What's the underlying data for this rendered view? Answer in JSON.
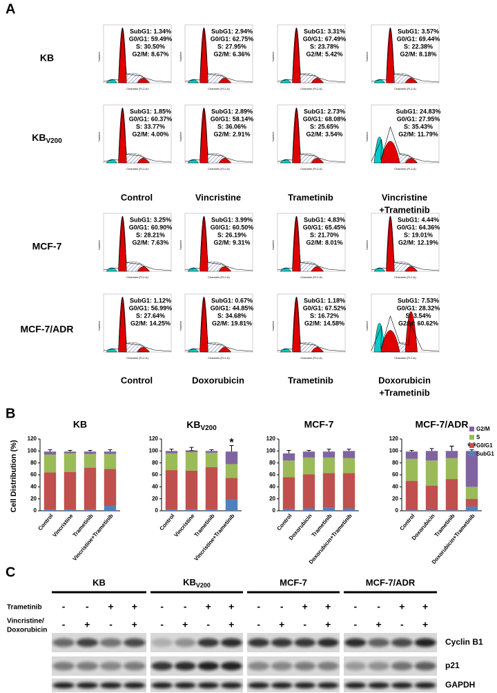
{
  "panel_a": {
    "label": "A",
    "plot_x_label": "Channels (FL2-A)",
    "plot_y_label": "Number",
    "rows": [
      {
        "label": "KB",
        "plots": [
          [
            "SubG1: 1.34%",
            "G0/G1: 59.49%",
            "S: 30.50%",
            "G2/M: 8.67%"
          ],
          [
            "SubG1: 2.94%",
            "G0/G1: 62.75%",
            "S: 27.95%",
            "G2/M: 6.36%"
          ],
          [
            "SubG1: 3.31%",
            "G0/G1: 67.49%",
            "S: 23.78%",
            "G2/M: 5.42%"
          ],
          [
            "SubG1: 3.57%",
            "G0/G1: 69.44%",
            "S: 22.38%",
            "G2/M: 8.18%"
          ]
        ]
      },
      {
        "label": {
          "main": "KB",
          "sub": "V200"
        },
        "plots": [
          [
            "SubG1: 1.85%",
            "G0/G1: 60.37%",
            "S: 33.77%",
            "G2/M: 4.00%"
          ],
          [
            "SubG1: 2.89%",
            "G0/G1: 58.14%",
            "S: 36.06%",
            "G2/M: 2.91%"
          ],
          [
            "SubG1: 2.73%",
            "G0/G1: 68.08%",
            "S: 25.65%",
            "G2/M: 3.54%"
          ],
          [
            "SubG1: 24.83%",
            "G0/G1: 27.95%",
            "S: 35.43%",
            "G2/M: 11.79%"
          ]
        ]
      },
      {
        "label": "MCF-7",
        "plots": [
          [
            "SubG1: 3.25%",
            "G0/G1: 60.90%",
            "S: 28.21%",
            "G2/M: 7.63%"
          ],
          [
            "SubG1: 3.99%",
            "G0/G1: 60.50%",
            "S: 26.19%",
            "G2/M: 9.31%"
          ],
          [
            "SubG1: 4.83%",
            "G0/G1: 65.45%",
            "S: 21.70%",
            "G2/M: 8.01%"
          ],
          [
            "SubG1: 4.44%",
            "G0/G1: 64.36%",
            "S: 19.01%",
            "G2/M: 12.19%"
          ]
        ]
      },
      {
        "label": "MCF-7/ADR",
        "plots": [
          [
            "SubG1: 1.12%",
            "G0/G1: 56.99%",
            "S: 27.64%",
            "G2/M: 14.25%"
          ],
          [
            "SubG1: 0.67%",
            "G0/G1: 44.85%",
            "S: 34.68%",
            "G2/M: 19.81%"
          ],
          [
            "SubG1: 1.18%",
            "G0/G1: 67.52%",
            "S: 16.72%",
            "G2/M: 14.58%"
          ],
          [
            "SubG1: 7.53%",
            "G0/G1: 28.32%",
            "S: 3.54%",
            "G2/M: 60.62%"
          ]
        ]
      }
    ],
    "column_labels": [
      [
        [
          "Control"
        ],
        [
          "Vincristine"
        ],
        [
          "Trametinib"
        ],
        [
          "Vincristine",
          "+Trametinib"
        ]
      ],
      [
        [
          "Control"
        ],
        [
          "Doxorubicin"
        ],
        [
          "Trametinib"
        ],
        [
          "Doxorubicin",
          "+Trametinib"
        ]
      ]
    ]
  },
  "panel_b": {
    "label": "B",
    "ylabel": "Cell Distribution (%)",
    "legend": "top-right"
  },
  "chart_data": [
    {
      "type": "bar",
      "stacked": true,
      "title": "KB",
      "categories": [
        "Control",
        "Vincristine",
        "Trametinib",
        "Vincristine+Trametinib"
      ],
      "ylim": [
        0,
        120
      ],
      "yticks": [
        0,
        20,
        40,
        60,
        80,
        100,
        120
      ],
      "series": [
        {
          "name": "SubG1",
          "color": "#4f81bd",
          "values": [
            2,
            2,
            2,
            8
          ],
          "errors": [
            1,
            1,
            1,
            4
          ]
        },
        {
          "name": "G0/G1",
          "color": "#c0504d",
          "values": [
            62,
            63,
            70,
            62
          ],
          "errors": [
            4,
            1,
            3,
            5
          ]
        },
        {
          "name": "S",
          "color": "#9bbb59",
          "values": [
            30,
            31,
            23,
            25
          ],
          "errors": [
            3,
            2,
            2,
            2
          ]
        },
        {
          "name": "G2/M",
          "color": "#8064a2",
          "values": [
            5,
            3,
            4,
            4
          ],
          "errors": [
            3,
            2,
            2,
            3
          ]
        }
      ]
    },
    {
      "type": "bar",
      "stacked": true,
      "title": "KB",
      "title_sub": "V200",
      "categories": [
        "Control",
        "Vincristine",
        "Trametinib",
        "Vincristine+Trametinib"
      ],
      "ylim": [
        0,
        120
      ],
      "yticks": [
        0,
        20,
        40,
        60,
        80,
        100,
        120
      ],
      "annotations": [
        {
          "category": "Vincristine+Trametinib",
          "text": "*"
        }
      ],
      "series": [
        {
          "name": "SubG1",
          "color": "#4f81bd",
          "values": [
            2,
            2,
            2,
            19
          ],
          "errors": [
            1,
            1,
            1,
            7
          ]
        },
        {
          "name": "G0/G1",
          "color": "#c0504d",
          "values": [
            66,
            65,
            71,
            36
          ],
          "errors": [
            10,
            12,
            4,
            12
          ]
        },
        {
          "name": "S",
          "color": "#9bbb59",
          "values": [
            28,
            31,
            24,
            23
          ],
          "errors": [
            3,
            3,
            2,
            10
          ]
        },
        {
          "name": "G2/M",
          "color": "#8064a2",
          "values": [
            4,
            3,
            3,
            21
          ],
          "errors": [
            3,
            5,
            2,
            10
          ]
        }
      ]
    },
    {
      "type": "bar",
      "stacked": true,
      "title": "MCF-7",
      "categories": [
        "Control",
        "Doxorubicin",
        "Trametinib",
        "Doxorubicin+Trametinib"
      ],
      "ylim": [
        0,
        120
      ],
      "yticks": [
        0,
        20,
        40,
        60,
        80,
        100,
        120
      ],
      "series": [
        {
          "name": "SubG1",
          "color": "#4f81bd",
          "values": [
            3,
            4,
            5,
            4
          ],
          "errors": [
            1,
            1,
            1,
            1
          ]
        },
        {
          "name": "G0/G1",
          "color": "#c0504d",
          "values": [
            53,
            57,
            58,
            59
          ],
          "errors": [
            10,
            3,
            10,
            7
          ]
        },
        {
          "name": "S",
          "color": "#9bbb59",
          "values": [
            28,
            28,
            26,
            25
          ],
          "errors": [
            4,
            3,
            5,
            4
          ]
        },
        {
          "name": "G2/M",
          "color": "#8064a2",
          "values": [
            12,
            10,
            10,
            12
          ],
          "errors": [
            5,
            2,
            4,
            3
          ]
        }
      ]
    },
    {
      "type": "bar",
      "stacked": true,
      "title": "MCF-7/ADR",
      "categories": [
        "Control",
        "Doxorubicin",
        "Trametinib",
        "Doxorubicin+Trametinib"
      ],
      "ylim": [
        0,
        120
      ],
      "yticks": [
        0,
        20,
        40,
        60,
        80,
        100,
        120
      ],
      "annotations": [
        {
          "category": "Doxorubicin+Trametinib",
          "text": "**"
        }
      ],
      "series": [
        {
          "name": "SubG1",
          "color": "#4f81bd",
          "values": [
            1,
            1,
            1,
            7
          ],
          "errors": [
            1,
            1,
            1,
            2
          ]
        },
        {
          "name": "G0/G1",
          "color": "#c0504d",
          "values": [
            49,
            41,
            52,
            13
          ],
          "errors": [
            11,
            4,
            20,
            7
          ]
        },
        {
          "name": "S",
          "color": "#9bbb59",
          "values": [
            37,
            42,
            35,
            20
          ],
          "errors": [
            2,
            4,
            20,
            27
          ]
        },
        {
          "name": "G2/M",
          "color": "#8064a2",
          "values": [
            12,
            16,
            12,
            60
          ],
          "errors": [
            2,
            4,
            8,
            2
          ]
        }
      ]
    }
  ],
  "panel_c": {
    "label": "C",
    "groups": [
      "KB",
      {
        "main": "KB",
        "sub": "V200"
      },
      "MCF-7",
      "MCF-7/ADR"
    ],
    "treatments": [
      {
        "label": [
          "Trametinib"
        ],
        "signs": [
          "-",
          "-",
          "+",
          "+"
        ]
      },
      {
        "label": [
          "Vincristine/",
          "Doxorubicin"
        ],
        "signs": [
          "-",
          "+",
          "-",
          "+"
        ]
      }
    ],
    "bands": [
      "Cyclin B1",
      "p21",
      "GAPDH"
    ]
  }
}
